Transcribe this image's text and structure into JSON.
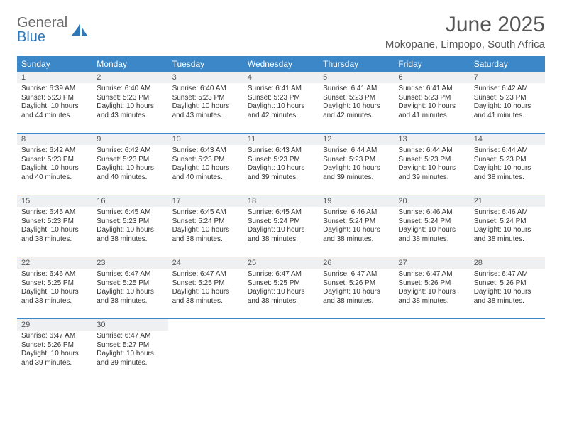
{
  "logo": {
    "line1": "General",
    "line2": "Blue"
  },
  "title": "June 2025",
  "location": "Mokopane, Limpopo, South Africa",
  "header_bg": "#3b87c8",
  "daynum_bg": "#eef0f2",
  "text_color": "#333333",
  "dayNames": [
    "Sunday",
    "Monday",
    "Tuesday",
    "Wednesday",
    "Thursday",
    "Friday",
    "Saturday"
  ],
  "weeks": [
    [
      {
        "n": "1",
        "sunrise": "Sunrise: 6:39 AM",
        "sunset": "Sunset: 5:23 PM",
        "daylight": "Daylight: 10 hours and 44 minutes."
      },
      {
        "n": "2",
        "sunrise": "Sunrise: 6:40 AM",
        "sunset": "Sunset: 5:23 PM",
        "daylight": "Daylight: 10 hours and 43 minutes."
      },
      {
        "n": "3",
        "sunrise": "Sunrise: 6:40 AM",
        "sunset": "Sunset: 5:23 PM",
        "daylight": "Daylight: 10 hours and 43 minutes."
      },
      {
        "n": "4",
        "sunrise": "Sunrise: 6:41 AM",
        "sunset": "Sunset: 5:23 PM",
        "daylight": "Daylight: 10 hours and 42 minutes."
      },
      {
        "n": "5",
        "sunrise": "Sunrise: 6:41 AM",
        "sunset": "Sunset: 5:23 PM",
        "daylight": "Daylight: 10 hours and 42 minutes."
      },
      {
        "n": "6",
        "sunrise": "Sunrise: 6:41 AM",
        "sunset": "Sunset: 5:23 PM",
        "daylight": "Daylight: 10 hours and 41 minutes."
      },
      {
        "n": "7",
        "sunrise": "Sunrise: 6:42 AM",
        "sunset": "Sunset: 5:23 PM",
        "daylight": "Daylight: 10 hours and 41 minutes."
      }
    ],
    [
      {
        "n": "8",
        "sunrise": "Sunrise: 6:42 AM",
        "sunset": "Sunset: 5:23 PM",
        "daylight": "Daylight: 10 hours and 40 minutes."
      },
      {
        "n": "9",
        "sunrise": "Sunrise: 6:42 AM",
        "sunset": "Sunset: 5:23 PM",
        "daylight": "Daylight: 10 hours and 40 minutes."
      },
      {
        "n": "10",
        "sunrise": "Sunrise: 6:43 AM",
        "sunset": "Sunset: 5:23 PM",
        "daylight": "Daylight: 10 hours and 40 minutes."
      },
      {
        "n": "11",
        "sunrise": "Sunrise: 6:43 AM",
        "sunset": "Sunset: 5:23 PM",
        "daylight": "Daylight: 10 hours and 39 minutes."
      },
      {
        "n": "12",
        "sunrise": "Sunrise: 6:44 AM",
        "sunset": "Sunset: 5:23 PM",
        "daylight": "Daylight: 10 hours and 39 minutes."
      },
      {
        "n": "13",
        "sunrise": "Sunrise: 6:44 AM",
        "sunset": "Sunset: 5:23 PM",
        "daylight": "Daylight: 10 hours and 39 minutes."
      },
      {
        "n": "14",
        "sunrise": "Sunrise: 6:44 AM",
        "sunset": "Sunset: 5:23 PM",
        "daylight": "Daylight: 10 hours and 38 minutes."
      }
    ],
    [
      {
        "n": "15",
        "sunrise": "Sunrise: 6:45 AM",
        "sunset": "Sunset: 5:23 PM",
        "daylight": "Daylight: 10 hours and 38 minutes."
      },
      {
        "n": "16",
        "sunrise": "Sunrise: 6:45 AM",
        "sunset": "Sunset: 5:23 PM",
        "daylight": "Daylight: 10 hours and 38 minutes."
      },
      {
        "n": "17",
        "sunrise": "Sunrise: 6:45 AM",
        "sunset": "Sunset: 5:24 PM",
        "daylight": "Daylight: 10 hours and 38 minutes."
      },
      {
        "n": "18",
        "sunrise": "Sunrise: 6:45 AM",
        "sunset": "Sunset: 5:24 PM",
        "daylight": "Daylight: 10 hours and 38 minutes."
      },
      {
        "n": "19",
        "sunrise": "Sunrise: 6:46 AM",
        "sunset": "Sunset: 5:24 PM",
        "daylight": "Daylight: 10 hours and 38 minutes."
      },
      {
        "n": "20",
        "sunrise": "Sunrise: 6:46 AM",
        "sunset": "Sunset: 5:24 PM",
        "daylight": "Daylight: 10 hours and 38 minutes."
      },
      {
        "n": "21",
        "sunrise": "Sunrise: 6:46 AM",
        "sunset": "Sunset: 5:24 PM",
        "daylight": "Daylight: 10 hours and 38 minutes."
      }
    ],
    [
      {
        "n": "22",
        "sunrise": "Sunrise: 6:46 AM",
        "sunset": "Sunset: 5:25 PM",
        "daylight": "Daylight: 10 hours and 38 minutes."
      },
      {
        "n": "23",
        "sunrise": "Sunrise: 6:47 AM",
        "sunset": "Sunset: 5:25 PM",
        "daylight": "Daylight: 10 hours and 38 minutes."
      },
      {
        "n": "24",
        "sunrise": "Sunrise: 6:47 AM",
        "sunset": "Sunset: 5:25 PM",
        "daylight": "Daylight: 10 hours and 38 minutes."
      },
      {
        "n": "25",
        "sunrise": "Sunrise: 6:47 AM",
        "sunset": "Sunset: 5:25 PM",
        "daylight": "Daylight: 10 hours and 38 minutes."
      },
      {
        "n": "26",
        "sunrise": "Sunrise: 6:47 AM",
        "sunset": "Sunset: 5:26 PM",
        "daylight": "Daylight: 10 hours and 38 minutes."
      },
      {
        "n": "27",
        "sunrise": "Sunrise: 6:47 AM",
        "sunset": "Sunset: 5:26 PM",
        "daylight": "Daylight: 10 hours and 38 minutes."
      },
      {
        "n": "28",
        "sunrise": "Sunrise: 6:47 AM",
        "sunset": "Sunset: 5:26 PM",
        "daylight": "Daylight: 10 hours and 38 minutes."
      }
    ],
    [
      {
        "n": "29",
        "sunrise": "Sunrise: 6:47 AM",
        "sunset": "Sunset: 5:26 PM",
        "daylight": "Daylight: 10 hours and 39 minutes."
      },
      {
        "n": "30",
        "sunrise": "Sunrise: 6:47 AM",
        "sunset": "Sunset: 5:27 PM",
        "daylight": "Daylight: 10 hours and 39 minutes."
      },
      null,
      null,
      null,
      null,
      null
    ]
  ]
}
